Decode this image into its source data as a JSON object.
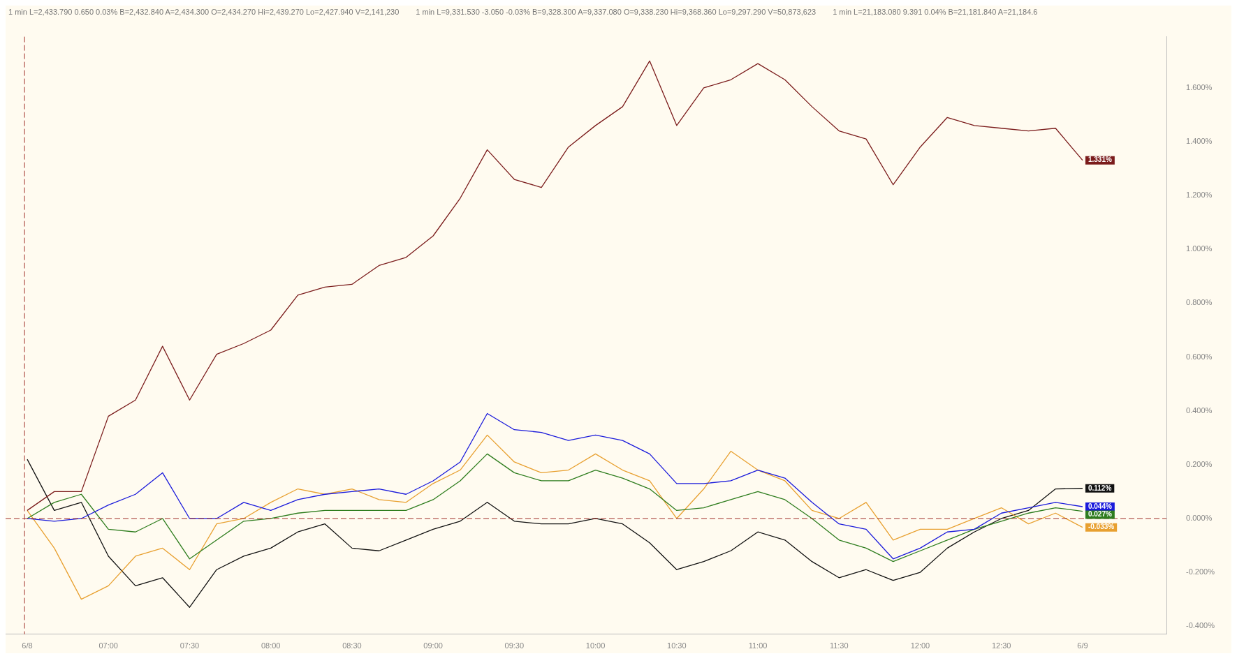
{
  "chart_data": {
    "type": "line",
    "annotations": [
      "1 min L=2,433.790 0.650 0.03% B=2,432.840 A=2,434.300 O=2,434.270 Hi=2,439.270 Lo=2,427.940 V=2,141,230",
      "1 min L=9,331.530 -3.050 -0.03% B=9,328.300 A=9,337.080 O=9,338.230 Hi=9,368.360 Lo=9,297.290 V=50,873,623",
      "1 min L=21,183.080 9.391 0.04% B=21,181.840 A=21,184.6"
    ],
    "x": [
      "--06-08T06:30",
      "--06-08T06:40",
      "--06-08T06:50",
      "--06-08T07:00",
      "--06-08T07:10",
      "--06-08T07:20",
      "--06-08T07:30",
      "--06-08T07:40",
      "--06-08T07:50",
      "--06-08T08:00",
      "--06-08T08:10",
      "--06-08T08:20",
      "--06-08T08:30",
      "--06-08T08:40",
      "--06-08T08:50",
      "--06-08T09:00",
      "--06-08T09:10",
      "--06-08T09:20",
      "--06-08T09:30",
      "--06-08T09:40",
      "--06-08T09:50",
      "--06-08T10:00",
      "--06-08T10:10",
      "--06-08T10:20",
      "--06-08T10:30",
      "--06-08T10:40",
      "--06-08T10:50",
      "--06-08T11:00",
      "--06-08T11:10",
      "--06-08T11:20",
      "--06-08T11:30",
      "--06-08T11:40",
      "--06-08T11:50",
      "--06-08T12:00",
      "--06-08T12:10",
      "--06-08T12:20",
      "--06-08T12:30",
      "--06-08T12:40",
      "--06-08T12:50",
      "--06-08T13:00"
    ],
    "series": [
      {
        "color": "#7b1c1c",
        "values": [
          0.03,
          0.1,
          0.1,
          0.38,
          0.44,
          0.64,
          0.44,
          0.61,
          0.65,
          0.7,
          0.83,
          0.86,
          0.87,
          0.94,
          0.97,
          1.05,
          1.19,
          1.37,
          1.26,
          1.23,
          1.38,
          1.46,
          1.53,
          1.7,
          1.46,
          1.6,
          1.63,
          1.69,
          1.63,
          1.53,
          1.44,
          1.41,
          1.24,
          1.38,
          1.49,
          1.46,
          1.45,
          1.44,
          1.45,
          1.331
        ],
        "value_labels": [
          null,
          null,
          null,
          null,
          null,
          null,
          null,
          null,
          null,
          null,
          null,
          null,
          null,
          null,
          null,
          null,
          null,
          null,
          null,
          null,
          null,
          null,
          null,
          null,
          null,
          null,
          null,
          null,
          null,
          null,
          null,
          null,
          null,
          null,
          null,
          null,
          null,
          null,
          null,
          "1.331%"
        ]
      },
      {
        "color": "#1a1adb",
        "values": [
          0,
          -0.01,
          0,
          0.05,
          0.09,
          0.17,
          0,
          0,
          0.06,
          0.03,
          0.07,
          0.09,
          0.1,
          0.11,
          0.09,
          0.14,
          0.21,
          0.39,
          0.33,
          0.32,
          0.29,
          0.31,
          0.29,
          0.24,
          0.13,
          0.13,
          0.14,
          0.18,
          0.15,
          0.06,
          -0.02,
          -0.04,
          -0.15,
          -0.11,
          -0.05,
          -0.04,
          0.02,
          0.04,
          0.06,
          0.044
        ],
        "value_labels": [
          null,
          null,
          null,
          null,
          null,
          null,
          null,
          null,
          null,
          null,
          null,
          null,
          null,
          null,
          null,
          null,
          null,
          null,
          null,
          null,
          null,
          null,
          null,
          null,
          null,
          null,
          null,
          null,
          null,
          null,
          null,
          null,
          null,
          null,
          null,
          null,
          null,
          null,
          null,
          "0.044%"
        ]
      },
      {
        "color": "#2e7d1e",
        "values": [
          0,
          0.06,
          0.09,
          -0.04,
          -0.05,
          0,
          -0.15,
          -0.08,
          -0.01,
          0,
          0.02,
          0.03,
          0.03,
          0.03,
          0.03,
          0.07,
          0.14,
          0.24,
          0.17,
          0.14,
          0.14,
          0.18,
          0.15,
          0.11,
          0.03,
          0.04,
          0.07,
          0.1,
          0.07,
          0,
          -0.08,
          -0.11,
          -0.16,
          -0.12,
          -0.08,
          -0.04,
          -0.01,
          0.02,
          0.04,
          0.027
        ],
        "value_labels": [
          null,
          null,
          null,
          null,
          null,
          null,
          null,
          null,
          null,
          null,
          null,
          null,
          null,
          null,
          null,
          null,
          null,
          null,
          null,
          null,
          null,
          null,
          null,
          null,
          null,
          null,
          null,
          null,
          null,
          null,
          null,
          null,
          null,
          null,
          null,
          null,
          null,
          null,
          null,
          "0.027%"
        ]
      },
      {
        "color": "#e8a030",
        "values": [
          0.03,
          -0.11,
          -0.3,
          -0.25,
          -0.14,
          -0.11,
          -0.19,
          -0.02,
          0,
          0.06,
          0.11,
          0.09,
          0.11,
          0.07,
          0.06,
          0.13,
          0.18,
          0.31,
          0.21,
          0.17,
          0.18,
          0.24,
          0.18,
          0.14,
          0,
          0.11,
          0.25,
          0.18,
          0.14,
          0.03,
          0,
          0.06,
          -0.08,
          -0.04,
          -0.04,
          0,
          0.04,
          -0.02,
          0.02,
          -0.033
        ],
        "value_labels": [
          null,
          null,
          null,
          null,
          null,
          null,
          null,
          null,
          null,
          null,
          null,
          null,
          null,
          null,
          null,
          null,
          null,
          null,
          null,
          null,
          null,
          null,
          null,
          null,
          null,
          null,
          null,
          null,
          null,
          null,
          null,
          null,
          null,
          null,
          null,
          null,
          null,
          null,
          null,
          "-0.033%"
        ]
      },
      {
        "color": "#111111",
        "values": [
          0.22,
          0.03,
          0.06,
          -0.14,
          -0.25,
          -0.22,
          -0.33,
          -0.19,
          -0.14,
          -0.11,
          -0.05,
          -0.02,
          -0.11,
          -0.12,
          -0.08,
          -0.04,
          -0.01,
          0.06,
          -0.01,
          -0.02,
          -0.02,
          0,
          -0.02,
          -0.09,
          -0.19,
          -0.16,
          -0.12,
          -0.05,
          -0.08,
          -0.16,
          -0.22,
          -0.19,
          -0.23,
          -0.2,
          -0.11,
          -0.05,
          0,
          0.03,
          0.11,
          0.112
        ],
        "value_labels": [
          null,
          null,
          null,
          null,
          null,
          null,
          null,
          null,
          null,
          null,
          null,
          null,
          null,
          null,
          null,
          null,
          null,
          null,
          null,
          null,
          null,
          null,
          null,
          null,
          null,
          null,
          null,
          null,
          null,
          null,
          null,
          null,
          null,
          null,
          null,
          null,
          null,
          null,
          null,
          "0.112%"
        ]
      }
    ],
    "xlim": [
      "--06-08T06:22",
      "--06-08T13:31"
    ],
    "xticks": [
      {
        "value": "--06-08T06:30",
        "label": "6/8"
      },
      {
        "value": "--06-08T07:00",
        "label": "07:00"
      },
      {
        "value": "--06-08T07:30",
        "label": "07:30"
      },
      {
        "value": "--06-08T08:00",
        "label": "08:00"
      },
      {
        "value": "--06-08T08:30",
        "label": "08:30"
      },
      {
        "value": "--06-08T09:00",
        "label": "09:00"
      },
      {
        "value": "--06-08T09:30",
        "label": "09:30"
      },
      {
        "value": "--06-08T10:00",
        "label": "10:00"
      },
      {
        "value": "--06-08T10:30",
        "label": "10:30"
      },
      {
        "value": "--06-08T11:00",
        "label": "11:00"
      },
      {
        "value": "--06-08T11:30",
        "label": "11:30"
      },
      {
        "value": "--06-08T12:00",
        "label": "12:00"
      },
      {
        "value": "--06-08T12:30",
        "label": "12:30"
      },
      {
        "value": "--06-08T13:00",
        "label": "6/9"
      }
    ],
    "ylim": [
      -0.43,
      1.79
    ],
    "yticks": [
      {
        "value": -0.4,
        "label": "-0.400%"
      },
      {
        "value": -0.2,
        "label": "-0.200%"
      },
      {
        "value": 0,
        "label": "0.000%"
      },
      {
        "value": 0.2,
        "label": "0.200%"
      },
      {
        "value": 0.4,
        "label": "0.400%"
      },
      {
        "value": 0.6,
        "label": "0.600%"
      },
      {
        "value": 0.8,
        "label": "0.800%"
      },
      {
        "value": 1,
        "label": "1.000%"
      },
      {
        "value": 1.2,
        "label": "1.200%"
      },
      {
        "value": 1.4,
        "label": "1.400%"
      },
      {
        "value": 1.6,
        "label": "1.600%"
      }
    ],
    "ref_lines": [
      {
        "axis": "x",
        "value": "--06-08T06:29",
        "color": "#a0302a",
        "line_style": "dashed"
      },
      {
        "axis": "y",
        "value": 0,
        "color": "#a0302a",
        "line_style": "dashed"
      }
    ],
    "grid": false,
    "legend": false,
    "marker": "none",
    "line_style": "solid"
  }
}
